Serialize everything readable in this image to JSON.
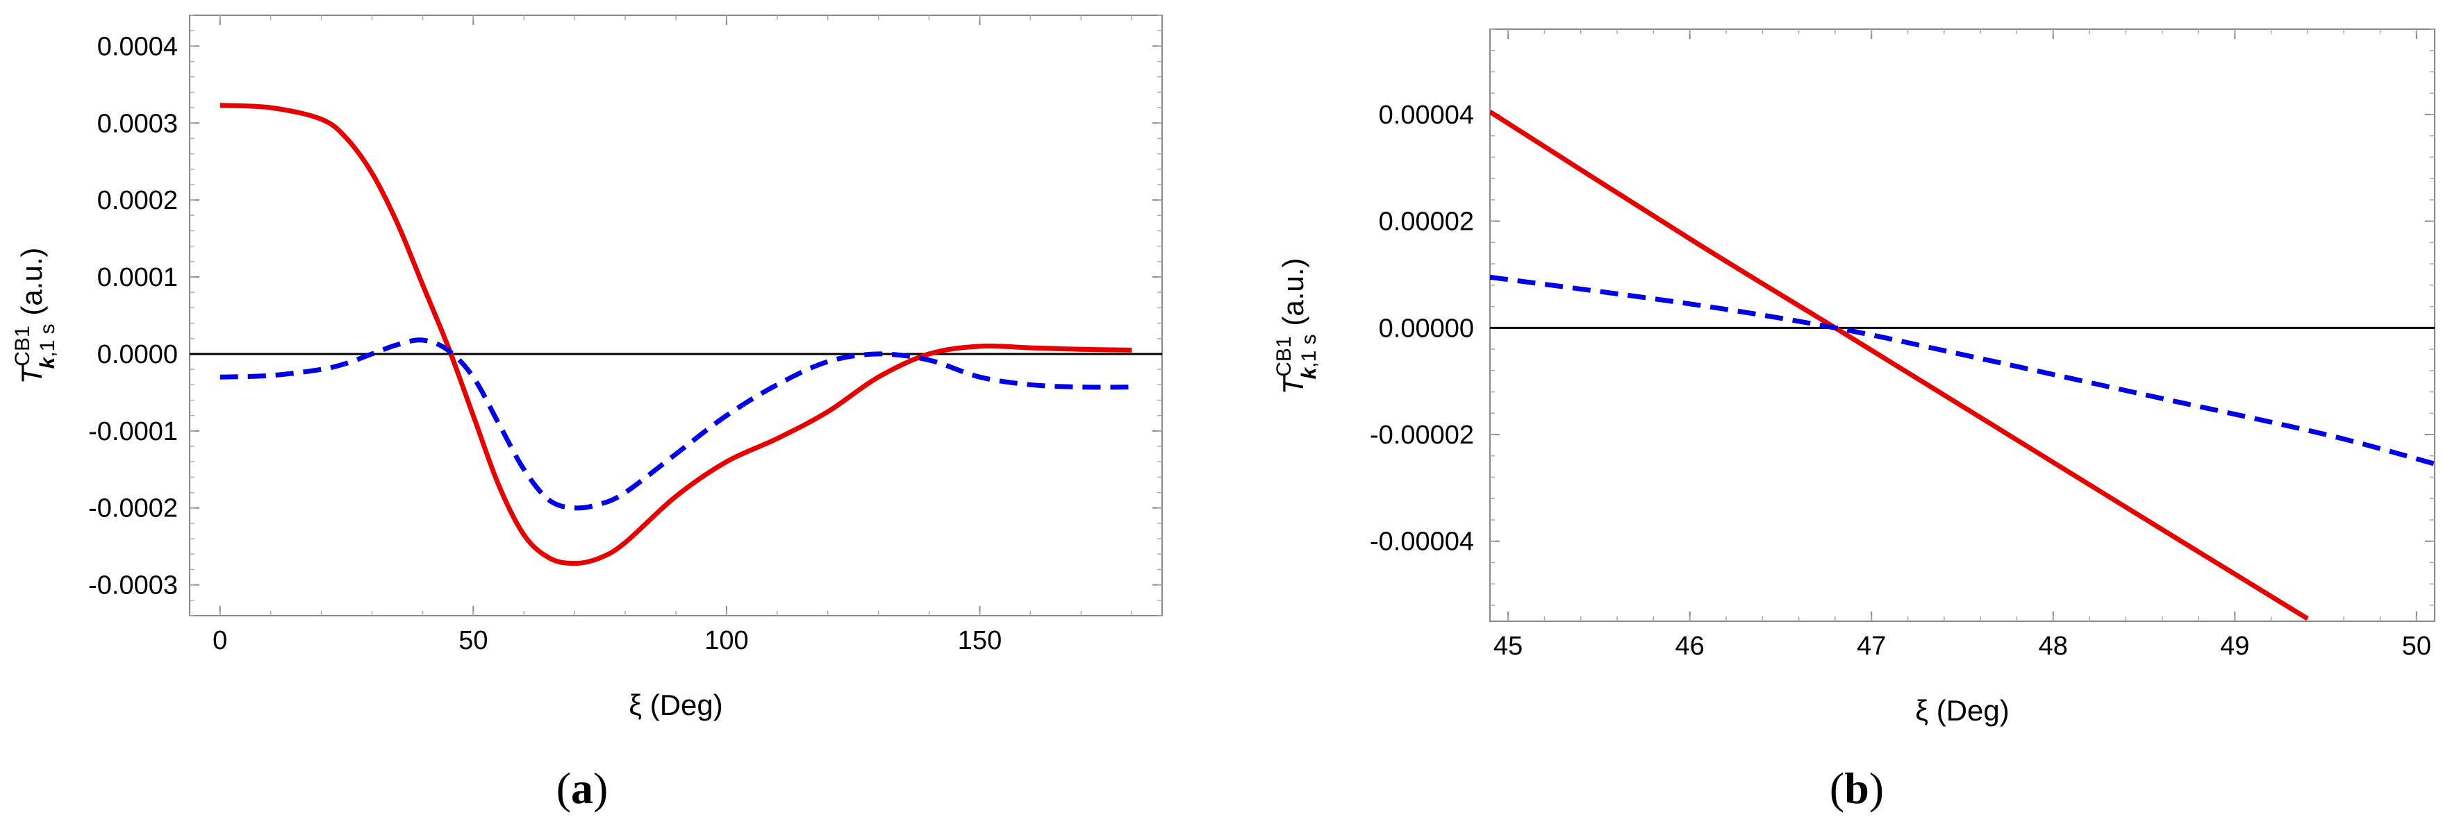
{
  "chart_data": [
    {
      "type": "line",
      "panel_label": "(a)",
      "xlabel": "ξ (Deg)",
      "ylabel": {
        "symbol": "T",
        "superscript": "CB1",
        "subscript_k": "k",
        "subscript_rest": ",1 s",
        "unit": " (a.u.)"
      },
      "xlim": [
        -6,
        186
      ],
      "ylim": [
        -0.00034,
        0.00044
      ],
      "xticks": [
        0,
        50,
        100,
        150
      ],
      "xtick_labels": [
        "0",
        "50",
        "100",
        "150"
      ],
      "yticks": [
        -0.0003,
        -0.0002,
        -0.0001,
        0,
        0.0001,
        0.0002,
        0.0003,
        0.0004
      ],
      "ytick_labels": [
        "-0.0003",
        "-0.0002",
        "-0.0001",
        "0.0000",
        "0.0001",
        "0.0002",
        "0.0003",
        "0.0004"
      ],
      "reference_line": 0,
      "series": [
        {
          "name": "solid",
          "style": "solid",
          "color": "#e60000",
          "x": [
            0,
            10,
            20,
            25,
            30,
            35,
            40,
            45,
            50,
            55,
            60,
            65,
            70,
            75,
            80,
            90,
            100,
            110,
            120,
            130,
            140,
            150,
            160,
            170,
            180
          ],
          "y": [
            0.000323,
            0.00032,
            0.000305,
            0.00028,
            0.000235,
            0.00017,
            9e-05,
            1e-05,
            -8e-05,
            -0.00017,
            -0.000235,
            -0.000265,
            -0.000272,
            -0.000265,
            -0.000245,
            -0.000185,
            -0.00014,
            -0.00011,
            -7.5e-05,
            -3e-05,
            0.0,
            1e-05,
            8e-06,
            6e-06,
            5e-06
          ]
        },
        {
          "name": "dashed",
          "style": "dashed",
          "color": "#0000e6",
          "x": [
            0,
            10,
            20,
            25,
            30,
            35,
            40,
            45,
            50,
            55,
            60,
            65,
            70,
            75,
            80,
            90,
            100,
            110,
            120,
            130,
            140,
            150,
            160,
            170,
            180
          ],
          "y": [
            -3e-05,
            -2.8e-05,
            -2e-05,
            -1.2e-05,
            0.0,
            1.2e-05,
            1.8e-05,
            5e-06,
            -3e-05,
            -9e-05,
            -0.00015,
            -0.00019,
            -0.0002,
            -0.000195,
            -0.00018,
            -0.00013,
            -8e-05,
            -4e-05,
            -1e-05,
            0.0,
            -8e-06,
            -3e-05,
            -4e-05,
            -4.3e-05,
            -4.3e-05
          ]
        }
      ]
    },
    {
      "type": "line",
      "panel_label": "(b)",
      "xlabel": "ξ (Deg)",
      "ylabel": {
        "symbol": "T",
        "superscript": "CB1",
        "subscript_k": "k",
        "subscript_rest": ",1 s",
        "unit": " (a.u.)"
      },
      "xlim": [
        44.9,
        50.1
      ],
      "ylim": [
        -5.5e-05,
        5.6e-05
      ],
      "xticks": [
        45,
        46,
        47,
        48,
        49,
        50
      ],
      "xtick_labels": [
        "45",
        "46",
        "47",
        "48",
        "49",
        "50"
      ],
      "yticks": [
        -4e-05,
        -2e-05,
        0,
        2e-05,
        4e-05
      ],
      "ytick_labels": [
        "-0.00004",
        "-0.00002",
        "0.00000",
        "0.00002",
        "0.00004"
      ],
      "reference_line": 0,
      "series": [
        {
          "name": "solid",
          "style": "solid",
          "color": "#e60000",
          "x": [
            44.9,
            46.0,
            46.8,
            47.5,
            48.5,
            49.4
          ],
          "y": [
            4.05e-05,
            1.67e-05,
            0.0,
            -1.47e-05,
            -3.57e-05,
            -5.45e-05
          ]
        },
        {
          "name": "dashed",
          "style": "dashed",
          "color": "#0000e6",
          "x": [
            44.9,
            46.0,
            46.8,
            47.5,
            48.5,
            49.5,
            50.1
          ],
          "y": [
            9.5e-06,
            4.5e-06,
            0.0,
            -5e-06,
            -1.25e-05,
            -2e-05,
            -2.55e-05
          ]
        }
      ]
    }
  ]
}
